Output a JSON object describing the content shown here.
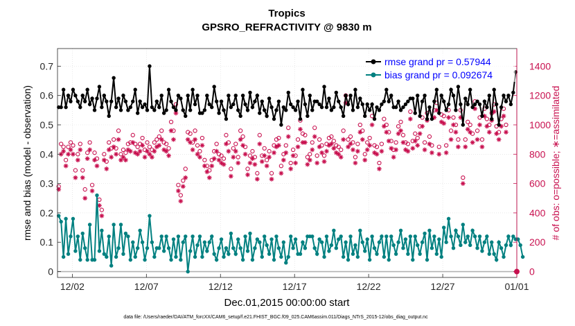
{
  "chart_data": {
    "type": "line",
    "title": "Tropics",
    "subtitle": "GPSRO_REFRACTIVITY @ 9830 m",
    "xlabel": "Dec.01,2015 00:00:00 start",
    "ylabel": "rmse and bias (model - observation)",
    "ylabel_right": "# of obs: o=possible; ∗=assimilated",
    "x_unit": "days since 2015-12-01 00:00",
    "xlim": [
      0,
      31
    ],
    "ylim": [
      -0.02,
      0.76
    ],
    "ylim_right": [
      -40,
      1520
    ],
    "x_ticks": [
      1,
      6,
      11,
      16,
      21,
      26,
      31
    ],
    "x_tick_labels": [
      "12/02",
      "12/07",
      "12/12",
      "12/17",
      "12/22",
      "12/27",
      "01/01"
    ],
    "y_ticks": [
      0,
      0.1,
      0.2,
      0.3,
      0.4,
      0.5,
      0.6,
      0.7
    ],
    "y_tick_labels": [
      "0",
      "0.1",
      "0.2",
      "0.3",
      "0.4",
      "0.5",
      "0.6",
      "0.7"
    ],
    "y_right_ticks": [
      0,
      200,
      400,
      600,
      800,
      1000,
      1200,
      1400
    ],
    "y_right_tick_labels": [
      "0",
      "200",
      "400",
      "600",
      "800",
      "1000",
      "1200",
      "1400"
    ],
    "grid": true,
    "legend": [
      {
        "label": "rmse grand pr = 0.57944",
        "color": "#000000",
        "marker": "circle"
      },
      {
        "label": "bias grand pr = 0.092674",
        "color": "#008080",
        "marker": "circle"
      }
    ],
    "legend_position": "top-right",
    "footnote": "data file: /Users/raeder/DAI/ATM_forcXX/CAM6_setup/f.e21.FHIST_BGC.f09_025.CAM6assim.011/Diags_NTrS_2015-12/obs_diag_output.nc",
    "series": [
      {
        "name": "rmse",
        "axis": "left",
        "color": "#000000",
        "marker": "filled-circle",
        "values": [
          0.56,
          0.56,
          0.62,
          0.56,
          0.6,
          0.58,
          0.62,
          0.6,
          0.58,
          0.56,
          0.6,
          0.58,
          0.62,
          0.57,
          0.59,
          0.55,
          0.59,
          0.63,
          0.56,
          0.6,
          0.58,
          0.53,
          0.58,
          0.66,
          0.56,
          0.59,
          0.55,
          0.6,
          0.58,
          0.55,
          0.56,
          0.58,
          0.62,
          0.54,
          0.58,
          0.56,
          0.57,
          0.55,
          0.7,
          0.56,
          0.55,
          0.58,
          0.56,
          0.6,
          0.54,
          0.55,
          0.62,
          0.58,
          0.56,
          0.55,
          0.6,
          0.59,
          0.55,
          0.53,
          0.6,
          0.55,
          0.62,
          0.57,
          0.6,
          0.54,
          0.54,
          0.55,
          0.6,
          0.57,
          0.56,
          0.63,
          0.58,
          0.54,
          0.58,
          0.55,
          0.52,
          0.6,
          0.56,
          0.57,
          0.6,
          0.55,
          0.53,
          0.6,
          0.57,
          0.55,
          0.61,
          0.56,
          0.58,
          0.6,
          0.54,
          0.58,
          0.55,
          0.53,
          0.59,
          0.56,
          0.52,
          0.55,
          0.58,
          0.5,
          0.56,
          0.55,
          0.61,
          0.57,
          0.56,
          0.55,
          0.58,
          0.52,
          0.62,
          0.57,
          0.53,
          0.6,
          0.55,
          0.58,
          0.58,
          0.57,
          0.56,
          0.63,
          0.56,
          0.59,
          0.55,
          0.56,
          0.61,
          0.58,
          0.56,
          0.53,
          0.6,
          0.57,
          0.6,
          0.55,
          0.62,
          0.56,
          0.59,
          0.57,
          0.53,
          0.57,
          0.55,
          0.57,
          0.52,
          0.56,
          0.55,
          0.57,
          0.58,
          0.62,
          0.58,
          0.6,
          0.56,
          0.56,
          0.58,
          0.55,
          0.56,
          0.57,
          0.58,
          0.59,
          0.59,
          0.54,
          0.6,
          0.53,
          0.58,
          0.6,
          0.52,
          0.56,
          0.52,
          0.58,
          0.62,
          0.54,
          0.6,
          0.58,
          0.55,
          0.57,
          0.62,
          0.6,
          0.55,
          0.63,
          0.57,
          0.5,
          0.59,
          0.57,
          0.62,
          0.56,
          0.57,
          0.58,
          0.57,
          0.53,
          0.58,
          0.56,
          0.6,
          0.52,
          0.62,
          0.57,
          0.5,
          0.56,
          0.6,
          0.58,
          0.6,
          0.57,
          0.61,
          0.68
        ]
      },
      {
        "name": "bias",
        "axis": "left",
        "color": "#008080",
        "marker": "filled-circle",
        "values": [
          0.19,
          0.17,
          0.05,
          0.18,
          0.06,
          0.12,
          0.18,
          0.07,
          0.12,
          0.04,
          0.13,
          0.08,
          0.04,
          0.16,
          0.04,
          0.04,
          0.26,
          0.07,
          0.14,
          0.06,
          0.05,
          0.12,
          0.02,
          0.16,
          0.05,
          0.08,
          0.16,
          0.06,
          0.13,
          0.12,
          0.04,
          0.1,
          0.05,
          0.08,
          0.14,
          0.1,
          0.04,
          0.08,
          0.19,
          0.1,
          0.05,
          0.08,
          0.08,
          0.12,
          0.07,
          0.12,
          0.08,
          0.04,
          0.11,
          0.05,
          0.12,
          0.04,
          0.1,
          0.12,
          0.0,
          0.07,
          0.12,
          0.05,
          0.09,
          0.12,
          0.05,
          0.1,
          0.07,
          0.1,
          0.12,
          0.06,
          0.04,
          0.08,
          0.11,
          0.05,
          0.08,
          0.06,
          0.13,
          0.08,
          0.06,
          0.11,
          0.08,
          0.04,
          0.12,
          0.07,
          0.13,
          0.04,
          0.08,
          0.11,
          0.1,
          0.05,
          0.12,
          0.09,
          0.06,
          0.11,
          0.04,
          0.12,
          0.08,
          0.05,
          0.1,
          0.03,
          0.05,
          0.12,
          0.08,
          0.11,
          0.06,
          0.06,
          0.1,
          0.08,
          0.12,
          0.12,
          0.12,
          0.08,
          0.06,
          0.11,
          0.1,
          0.05,
          0.12,
          0.07,
          0.09,
          0.14,
          0.08,
          0.11,
          0.12,
          0.05,
          0.1,
          0.04,
          0.12,
          0.06,
          0.09,
          0.05,
          0.14,
          0.1,
          0.07,
          0.11,
          0.04,
          0.12,
          0.08,
          0.06,
          0.1,
          0.12,
          0.05,
          0.12,
          0.04,
          0.12,
          0.09,
          0.06,
          0.1,
          0.14,
          0.08,
          0.11,
          0.06,
          0.12,
          0.04,
          0.12,
          0.09,
          0.06,
          0.1,
          0.13,
          0.04,
          0.14,
          0.08,
          0.12,
          0.06,
          0.11,
          0.05,
          0.15,
          0.1,
          0.18,
          0.12,
          0.08,
          0.14,
          0.12,
          0.09,
          0.16,
          0.1,
          0.12,
          0.09,
          0.14,
          0.12,
          0.08,
          0.12,
          0.07,
          0.1,
          0.12,
          0.06,
          0.1,
          0.06,
          0.04,
          0.1,
          0.08,
          0.05,
          0.09,
          0.12,
          0.09,
          0.12,
          0.11,
          0.11,
          0.09,
          0.05
        ]
      },
      {
        "name": "possible",
        "axis": "right",
        "color": "#c8104f",
        "marker": "open-circle",
        "values": [
          580,
          870,
          850,
          760,
          850,
          880,
          860,
          690,
          800,
          870,
          690,
          560,
          810,
          880,
          590,
          810,
          770,
          490,
          420,
          800,
          750,
          880,
          840,
          900,
          840,
          960,
          800,
          830,
          810,
          870,
          880,
          930,
          870,
          850,
          870,
          910,
          830,
          880,
          850,
          830,
          880,
          900,
          920,
          960,
          880,
          870,
          840,
          1020,
          960,
          1140,
          590,
          520,
          620,
          700,
          950,
          940,
          880,
          960,
          860,
          820,
          910,
          760,
          720,
          690,
          760,
          820,
          870,
          800,
          790,
          770,
          930,
          880,
          700,
          840,
          870,
          780,
          960,
          920,
          850,
          700,
          790,
          820,
          780,
          670,
          930,
          790,
          840,
          760,
          820,
          670,
          860,
          900,
          910,
          720,
          800,
          860,
          980,
          740,
          830,
          790,
          900,
          1030,
          940,
          930,
          780,
          800,
          880,
          980,
          790,
          900,
          860,
          790,
          870,
          910,
          920,
          890,
          860,
          850,
          830,
          960,
          1200,
          900,
          920,
          880,
          780,
          870,
          1000,
          960,
          800,
          880,
          910,
          1060,
          860,
          850,
          740,
          870,
          1040,
          1000,
          950,
          890,
          830,
          880,
          990,
          1020,
          930,
          880,
          870,
          1090,
          890,
          940,
          910,
          990,
          1050,
          880,
          1080,
          920,
          860,
          1100,
          1150,
          850,
          1070,
          1060,
          860,
          1100,
          960,
          1050,
          1000,
          900,
          1100,
          640,
          900,
          1020,
          1000,
          940,
          1160,
          960,
          1050,
          900,
          1110,
          1040,
          1000,
          1080,
          1140,
          990,
          950,
          1040,
          1110,
          1000
        ]
      },
      {
        "name": "assimilated",
        "axis": "right",
        "color": "#c8104f",
        "marker": "asterisk",
        "values": [
          560,
          800,
          820,
          720,
          800,
          830,
          800,
          640,
          760,
          830,
          640,
          500,
          770,
          830,
          550,
          760,
          720,
          450,
          380,
          760,
          700,
          830,
          780,
          850,
          800,
          900,
          760,
          780,
          760,
          830,
          820,
          880,
          810,
          800,
          820,
          860,
          780,
          820,
          800,
          780,
          820,
          850,
          860,
          900,
          830,
          820,
          790,
          960,
          900,
          1080,
          550,
          480,
          580,
          640,
          900,
          880,
          830,
          900,
          800,
          780,
          860,
          720,
          680,
          640,
          720,
          770,
          820,
          760,
          740,
          730,
          870,
          820,
          650,
          780,
          820,
          740,
          900,
          860,
          800,
          660,
          740,
          770,
          730,
          630,
          870,
          750,
          790,
          720,
          780,
          630,
          810,
          850,
          860,
          670,
          760,
          810,
          920,
          700,
          790,
          740,
          850,
          970,
          880,
          880,
          730,
          760,
          830,
          920,
          740,
          850,
          810,
          750,
          820,
          860,
          870,
          840,
          810,
          800,
          780,
          900,
          1150,
          850,
          870,
          830,
          740,
          820,
          950,
          900,
          760,
          830,
          860,
          1000,
          810,
          800,
          700,
          820,
          990,
          950,
          890,
          840,
          780,
          830,
          940,
          960,
          880,
          830,
          820,
          1040,
          840,
          890,
          860,
          940,
          990,
          830,
          1030,
          870,
          810,
          1050,
          1100,
          800,
          1020,
          1010,
          810,
          1050,
          900,
          1000,
          950,
          850,
          1050,
          600,
          850,
          970,
          950,
          880,
          1110,
          900,
          1000,
          850,
          1060,
          990,
          950,
          1030,
          1090,
          940,
          900,
          990,
          1060,
          950
        ]
      }
    ],
    "extra_points": [
      {
        "series": "assimilated",
        "x": 31,
        "value": 0
      }
    ]
  }
}
